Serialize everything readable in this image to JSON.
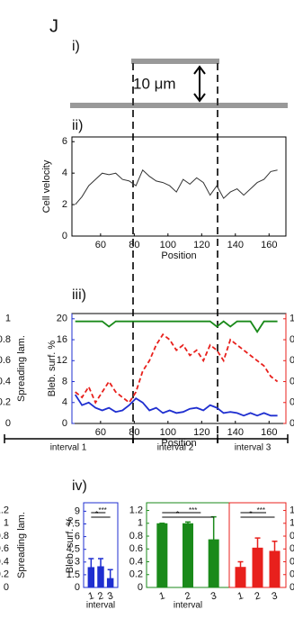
{
  "panel_label": "J",
  "subpanels": [
    "i)",
    "ii)",
    "iii)",
    "iv)"
  ],
  "scale_bar": "10 μm",
  "intervals": [
    "interval 1",
    "interval 2",
    "interval 3"
  ],
  "chart_data": [
    {
      "type": "line",
      "ylabel": "Cell velocity",
      "xlabel": "Position",
      "color": "#333333",
      "x": [
        45,
        49,
        53,
        57,
        61,
        65,
        69,
        73,
        77,
        81,
        85,
        89,
        93,
        97,
        101,
        105,
        109,
        113,
        117,
        121,
        125,
        129,
        133,
        137,
        141,
        145,
        149,
        153,
        157,
        161,
        165
      ],
      "values": [
        2,
        2.5,
        3.2,
        3.6,
        4,
        3.9,
        4,
        3.6,
        3.5,
        3.2,
        4.2,
        3.8,
        3.5,
        3.4,
        3.2,
        2.8,
        3.6,
        3.3,
        3.7,
        3.4,
        2.6,
        3.2,
        2.4,
        2.8,
        3,
        2.6,
        3,
        3.4,
        3.6,
        4.1,
        4.2
      ],
      "xlim": [
        43,
        170
      ],
      "xticks": [
        60,
        80,
        100,
        120,
        140,
        160
      ],
      "ylim": [
        0,
        6.3
      ],
      "yticks": [
        0,
        2,
        4,
        6
      ]
    },
    {
      "type": "dual-line",
      "ylabel": "Bleb. surf. %",
      "y2label": "Spreading lam.",
      "xlabel": "Position",
      "x": [
        45,
        49,
        53,
        57,
        61,
        65,
        69,
        73,
        77,
        81,
        85,
        89,
        93,
        97,
        101,
        105,
        109,
        113,
        117,
        121,
        125,
        129,
        133,
        137,
        141,
        145,
        149,
        153,
        157,
        161,
        165
      ],
      "series": [
        {
          "color": "#1f2fd0",
          "values": [
            5.5,
            3.5,
            4,
            3,
            2.5,
            3,
            2.2,
            2.5,
            3.5,
            4.8,
            4,
            2.5,
            3,
            2,
            2.5,
            2,
            2.2,
            2.8,
            3,
            2.5,
            3.5,
            3,
            2,
            2.2,
            2,
            1.5,
            2,
            1.5,
            2,
            1.5,
            1.5
          ]
        },
        {
          "color": "#1a8a1a",
          "values": [
            19.5,
            19.5,
            19.5,
            19.5,
            19.5,
            18.5,
            19.5,
            19.5,
            19.5,
            19.5,
            19.5,
            19.5,
            19.5,
            19.5,
            19.5,
            19.5,
            19.5,
            19.5,
            19.5,
            19.5,
            19.5,
            18.5,
            19.5,
            18.5,
            19.5,
            19.5,
            19.5,
            17.5,
            19.5,
            19.5,
            19.5
          ]
        },
        {
          "color": "#e8201c",
          "axis": "y2",
          "dashed": true,
          "values": [
            0.3,
            0.25,
            0.35,
            0.2,
            0.3,
            0.4,
            0.3,
            0.25,
            0.2,
            0.3,
            0.5,
            0.6,
            0.75,
            0.85,
            0.8,
            0.7,
            0.75,
            0.65,
            0.7,
            0.6,
            0.75,
            0.7,
            0.6,
            0.8,
            0.75,
            0.7,
            0.65,
            0.6,
            0.55,
            0.45,
            0.4
          ]
        }
      ],
      "xlim": [
        43,
        170
      ],
      "xticks": [
        60,
        80,
        100,
        120,
        140,
        160
      ],
      "ylim": [
        0,
        21
      ],
      "yticks": [
        0,
        4,
        8,
        12,
        16,
        20
      ],
      "y2lim": [
        0,
        1.05
      ],
      "y2ticks": [
        0,
        0.2,
        0.4,
        0.6,
        0.8,
        1
      ]
    },
    {
      "type": "bar",
      "ylabel": "Bleb. surf. %",
      "xlabel": "interval",
      "color": "#1f2fd0",
      "categories": [
        "1",
        "2",
        "3"
      ],
      "values": [
        2.4,
        2.5,
        1.1
      ],
      "errors": [
        1,
        0.9,
        1
      ],
      "ylim": [
        0,
        10
      ],
      "yticks": [
        0,
        1.5,
        3,
        4.5,
        6,
        7.5,
        9
      ],
      "annotations": [
        "***",
        "*"
      ]
    },
    {
      "type": "bar",
      "xlabel": "interval",
      "color": "#1a8a1a",
      "categories": [
        "1",
        "2",
        "3"
      ],
      "values": [
        1,
        1,
        0.75
      ],
      "errors": [
        0,
        0.02,
        0.35
      ],
      "ylim": [
        0,
        1.32
      ],
      "yticks": [
        0,
        0.2,
        0.4,
        0.6,
        0.8,
        1,
        1.2
      ],
      "annotations": [
        "***",
        "*"
      ]
    },
    {
      "type": "bar",
      "ylabel": "Spreading lam.",
      "color": "#e8201c",
      "categories": [
        "1",
        "2",
        "3"
      ],
      "values": [
        0.32,
        0.62,
        0.57
      ],
      "errors": [
        0.08,
        0.15,
        0.15
      ],
      "ylim": [
        0,
        1.32
      ],
      "yticks": [
        0,
        0.2,
        0.4,
        0.6,
        0.8,
        1,
        1.2
      ],
      "annotations": [
        "***",
        "*"
      ]
    }
  ]
}
